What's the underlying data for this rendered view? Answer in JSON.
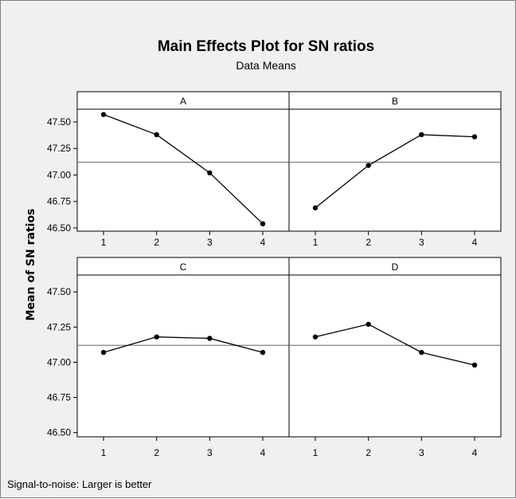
{
  "chart_data": {
    "type": "line",
    "title": "Main Effects Plot for SN ratios",
    "subtitle": "Data Means",
    "ylabel": "Mean of SN ratios",
    "footnote": "Signal-to-noise: Larger is better",
    "x": [
      "1",
      "2",
      "3",
      "4"
    ],
    "ylim": [
      46.47,
      47.62
    ],
    "yticks": [
      "46.50",
      "46.75",
      "47.00",
      "47.25",
      "47.50"
    ],
    "reference_line": 47.12,
    "panels": [
      {
        "name": "A",
        "values": [
          47.57,
          47.38,
          47.02,
          46.54
        ]
      },
      {
        "name": "B",
        "values": [
          46.69,
          47.09,
          47.38,
          47.36
        ]
      },
      {
        "name": "C",
        "values": [
          47.07,
          47.18,
          47.17,
          47.07
        ]
      },
      {
        "name": "D",
        "values": [
          47.18,
          47.27,
          47.07,
          46.98
        ]
      }
    ],
    "grid": false,
    "colors": {
      "line": "#000000",
      "background": "#f0f0f0",
      "panel": "#ffffff"
    }
  }
}
